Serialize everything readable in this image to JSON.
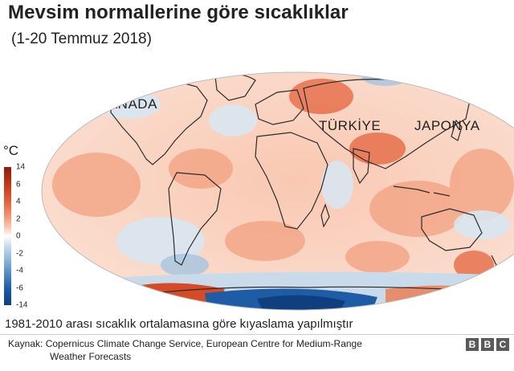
{
  "title": "Mevsim normallerine göre sıcaklıklar",
  "subtitle": "(1-20 Temmuz 2018)",
  "map": {
    "labels": [
      "KANADA",
      "TÜRKİYE",
      "JAPONYA"
    ]
  },
  "legend": {
    "unit": "°C",
    "ticks": [
      "14",
      "6",
      "4",
      "2",
      "0",
      "-2",
      "-4",
      "-6",
      "-14"
    ],
    "colors": {
      "hot_extreme": "#8a1c0e",
      "hot": "#e1613a",
      "neutral": "#ffffff",
      "cold": "#4d88bf",
      "cold_extreme": "#0f3f7f"
    }
  },
  "note": "1981-2010 arası sıcaklık ortalamasına göre kıyaslama yapılmıştır",
  "source": {
    "line1": "Kaynak: Copernicus Climate Change Service, European Centre for Medium-Range",
    "line2": "Weather Forecasts"
  },
  "logo": [
    "B",
    "B",
    "C"
  ]
}
